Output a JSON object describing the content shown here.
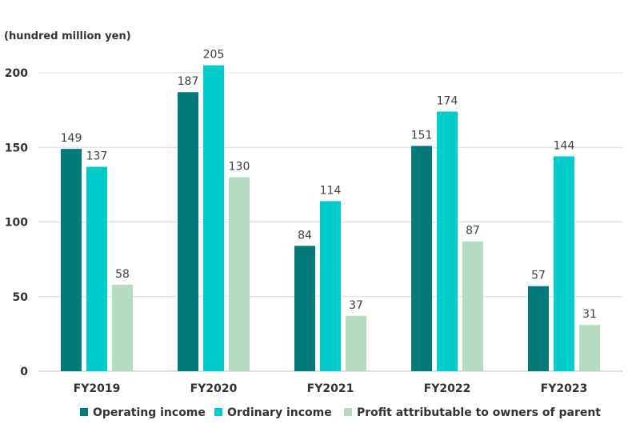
{
  "chart_data": {
    "type": "bar",
    "unit_label": "(hundred million yen)",
    "categories": [
      "FY2019",
      "FY2020",
      "FY2021",
      "FY2022",
      "FY2023"
    ],
    "series": [
      {
        "name": "Operating income",
        "color": "#007B7A",
        "values": [
          149,
          187,
          84,
          151,
          57
        ]
      },
      {
        "name": "Ordinary income",
        "color": "#00CCCC",
        "values": [
          137,
          205,
          114,
          174,
          144
        ]
      },
      {
        "name": "Profit attributable to owners of parent",
        "color": "#B5DCC1",
        "values": [
          58,
          130,
          37,
          87,
          31
        ]
      }
    ],
    "ylim": [
      0,
      200
    ],
    "yticks": [
      0,
      50,
      100,
      150,
      200
    ],
    "grid": true,
    "legend_position": "bottom"
  }
}
